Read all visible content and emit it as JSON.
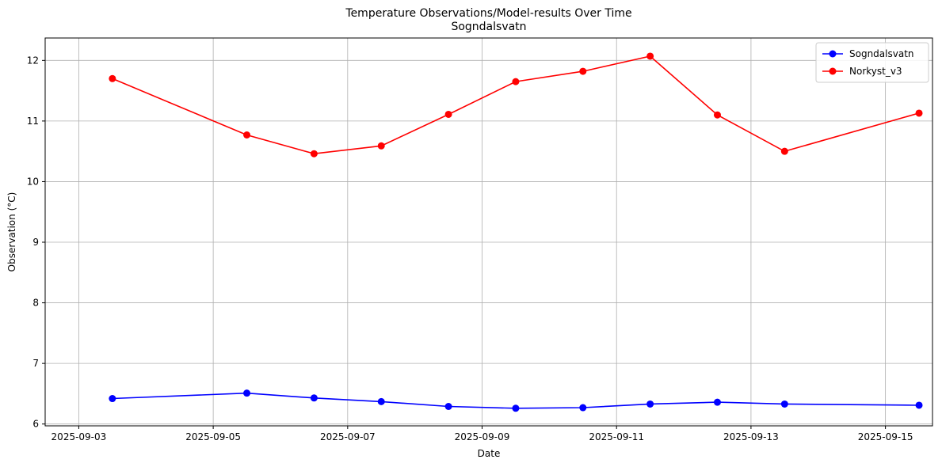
{
  "chart_data": {
    "type": "line",
    "title": "Temperature Observations/Model-results Over Time",
    "subtitle": "Sogndalsvatn",
    "xlabel": "Date",
    "ylabel": "Observation (°C)",
    "xlim": [
      -0.5,
      12.7
    ],
    "ylim": [
      5.97,
      12.37
    ],
    "grid": true,
    "legend_position": "top-right",
    "x_ticks": [
      {
        "value": 0,
        "label": "2025-09-03"
      },
      {
        "value": 2,
        "label": "2025-09-05"
      },
      {
        "value": 4,
        "label": "2025-09-07"
      },
      {
        "value": 6,
        "label": "2025-09-09"
      },
      {
        "value": 8,
        "label": "2025-09-11"
      },
      {
        "value": 10,
        "label": "2025-09-13"
      },
      {
        "value": 12,
        "label": "2025-09-15"
      }
    ],
    "y_ticks": [
      6,
      7,
      8,
      9,
      10,
      11,
      12
    ],
    "series": [
      {
        "name": "Sogndalsvatn",
        "color": "#0000ff",
        "x": [
          0.5,
          2.5,
          3.5,
          4.5,
          5.5,
          6.5,
          7.5,
          8.5,
          9.5,
          10.5,
          12.5
        ],
        "values": [
          6.42,
          6.51,
          6.43,
          6.37,
          6.29,
          6.26,
          6.27,
          6.33,
          6.36,
          6.33,
          6.31
        ]
      },
      {
        "name": "Norkyst_v3",
        "color": "#ff0000",
        "x": [
          0.5,
          2.5,
          3.5,
          4.5,
          5.5,
          6.5,
          7.5,
          8.5,
          9.5,
          10.5,
          12.5
        ],
        "values": [
          11.7,
          10.77,
          10.46,
          10.59,
          11.11,
          11.65,
          11.82,
          12.07,
          11.1,
          10.5,
          11.13
        ]
      }
    ]
  }
}
